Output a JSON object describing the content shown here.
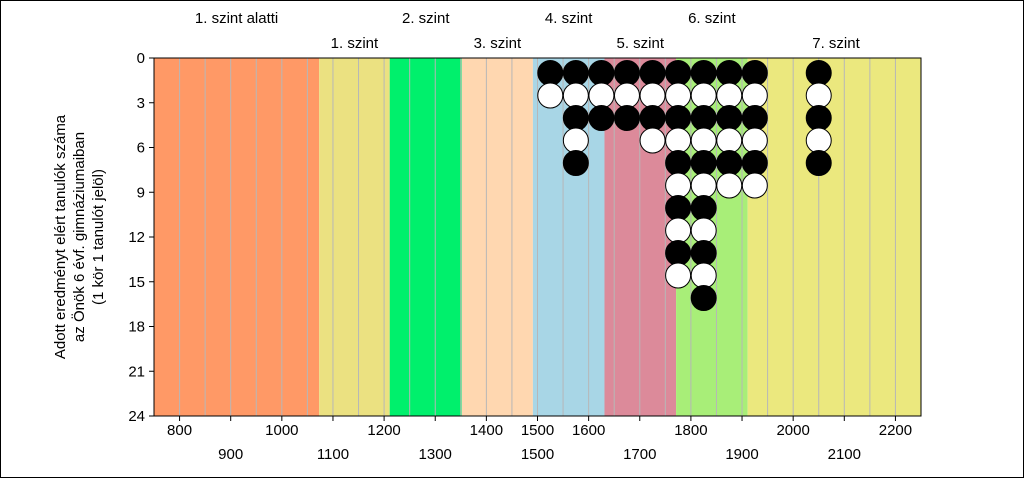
{
  "chart_data": {
    "type": "scatter",
    "ylabel_lines": [
      "Adott eredményt elért tanulók száma",
      "az Önök 6 évf. gimnáziumaiban",
      "(1 kör 1 tanulót jelöl)"
    ],
    "xlim": [
      750,
      2250
    ],
    "ylim": [
      0,
      24
    ],
    "y_inverted": true,
    "y_ticks": [
      0,
      3,
      6,
      9,
      12,
      15,
      18,
      21,
      24
    ],
    "x_ticks_row1": [
      800,
      1000,
      1200,
      1400,
      1500,
      1600,
      1800,
      2000,
      2200
    ],
    "x_ticks_row2": [
      900,
      1100,
      1300,
      1500,
      1700,
      1900,
      2100
    ],
    "grid_step": 50,
    "bands": [
      {
        "from": 750,
        "to": 1073,
        "color": "#FF9966",
        "label": "1. szint alatti",
        "label_row": "top"
      },
      {
        "from": 1073,
        "to": 1211,
        "color": "#EBE181",
        "label": "1. szint",
        "label_row": "bottom"
      },
      {
        "from": 1211,
        "to": 1352,
        "color": "#00F06C",
        "label": "2. szint",
        "label_row": "top"
      },
      {
        "from": 1352,
        "to": 1491,
        "color": "#FFD7B0",
        "label": "3. szint",
        "label_row": "bottom"
      },
      {
        "from": 1491,
        "to": 1631,
        "color": "#A8D6E6",
        "label": "4. szint",
        "label_row": "top"
      },
      {
        "from": 1631,
        "to": 1771,
        "color": "#DC8A9A",
        "label": "5. szint",
        "label_row": "bottom"
      },
      {
        "from": 1771,
        "to": 1911,
        "color": "#A8EE78",
        "label": "6. szint",
        "label_row": "top"
      },
      {
        "from": 1911,
        "to": 2250,
        "color": "#EBE87E",
        "label": "7. szint",
        "label_row": "bottom"
      }
    ],
    "columns": [
      {
        "x": 1525,
        "pattern": "bw",
        "count": 2
      },
      {
        "x": 1575,
        "pattern": "bw",
        "count": 5
      },
      {
        "x": 1625,
        "pattern": "bw",
        "count": 3
      },
      {
        "x": 1675,
        "pattern": "bw",
        "count": 3
      },
      {
        "x": 1725,
        "pattern": "bw",
        "count": 4
      },
      {
        "x": 1775,
        "pattern": "bw",
        "count": 10
      },
      {
        "x": 1825,
        "pattern": "bw",
        "count": 11
      },
      {
        "x": 1875,
        "pattern": "bw",
        "count": 6
      },
      {
        "x": 1925,
        "pattern": "bw",
        "count": 6
      },
      {
        "x": 2050,
        "pattern": "bw",
        "count": 5
      }
    ],
    "colors": {
      "grid": "#B7B7B7",
      "axis": "#000000",
      "marker_black": "#000000",
      "marker_white": "#FFFFFF"
    }
  }
}
